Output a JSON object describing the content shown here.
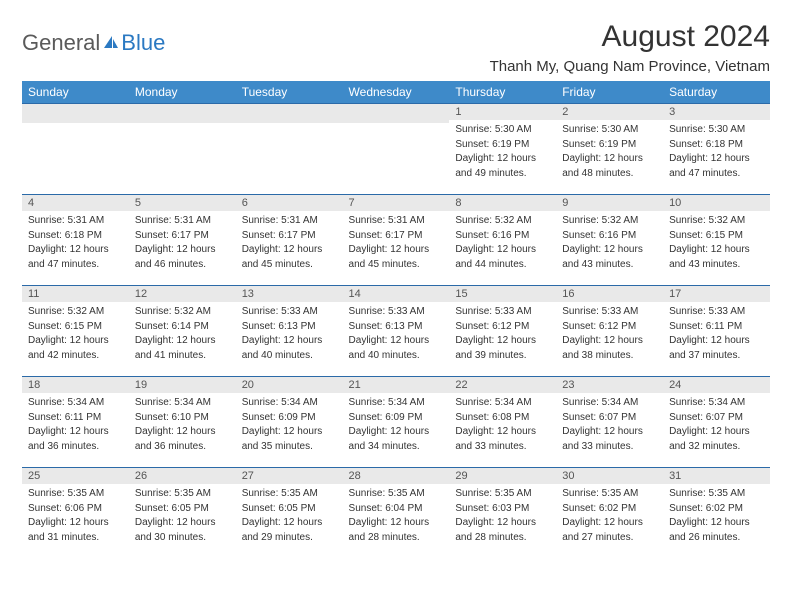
{
  "logo": {
    "text1": "General",
    "text2": "Blue"
  },
  "title": "August 2024",
  "location": "Thanh My, Quang Nam Province, Vietnam",
  "colors": {
    "header_bg": "#3e8ac9",
    "header_text": "#ffffff",
    "daynum_bg": "#e9e9e9",
    "border": "#2b6aa8",
    "logo_gray": "#5a5a5a",
    "logo_blue": "#2b79c2"
  },
  "weekdays": [
    "Sunday",
    "Monday",
    "Tuesday",
    "Wednesday",
    "Thursday",
    "Friday",
    "Saturday"
  ],
  "weeks": [
    [
      null,
      null,
      null,
      null,
      {
        "n": "1",
        "sr": "5:30 AM",
        "ss": "6:19 PM",
        "dl": "12 hours and 49 minutes."
      },
      {
        "n": "2",
        "sr": "5:30 AM",
        "ss": "6:19 PM",
        "dl": "12 hours and 48 minutes."
      },
      {
        "n": "3",
        "sr": "5:30 AM",
        "ss": "6:18 PM",
        "dl": "12 hours and 47 minutes."
      }
    ],
    [
      {
        "n": "4",
        "sr": "5:31 AM",
        "ss": "6:18 PM",
        "dl": "12 hours and 47 minutes."
      },
      {
        "n": "5",
        "sr": "5:31 AM",
        "ss": "6:17 PM",
        "dl": "12 hours and 46 minutes."
      },
      {
        "n": "6",
        "sr": "5:31 AM",
        "ss": "6:17 PM",
        "dl": "12 hours and 45 minutes."
      },
      {
        "n": "7",
        "sr": "5:31 AM",
        "ss": "6:17 PM",
        "dl": "12 hours and 45 minutes."
      },
      {
        "n": "8",
        "sr": "5:32 AM",
        "ss": "6:16 PM",
        "dl": "12 hours and 44 minutes."
      },
      {
        "n": "9",
        "sr": "5:32 AM",
        "ss": "6:16 PM",
        "dl": "12 hours and 43 minutes."
      },
      {
        "n": "10",
        "sr": "5:32 AM",
        "ss": "6:15 PM",
        "dl": "12 hours and 43 minutes."
      }
    ],
    [
      {
        "n": "11",
        "sr": "5:32 AM",
        "ss": "6:15 PM",
        "dl": "12 hours and 42 minutes."
      },
      {
        "n": "12",
        "sr": "5:32 AM",
        "ss": "6:14 PM",
        "dl": "12 hours and 41 minutes."
      },
      {
        "n": "13",
        "sr": "5:33 AM",
        "ss": "6:13 PM",
        "dl": "12 hours and 40 minutes."
      },
      {
        "n": "14",
        "sr": "5:33 AM",
        "ss": "6:13 PM",
        "dl": "12 hours and 40 minutes."
      },
      {
        "n": "15",
        "sr": "5:33 AM",
        "ss": "6:12 PM",
        "dl": "12 hours and 39 minutes."
      },
      {
        "n": "16",
        "sr": "5:33 AM",
        "ss": "6:12 PM",
        "dl": "12 hours and 38 minutes."
      },
      {
        "n": "17",
        "sr": "5:33 AM",
        "ss": "6:11 PM",
        "dl": "12 hours and 37 minutes."
      }
    ],
    [
      {
        "n": "18",
        "sr": "5:34 AM",
        "ss": "6:11 PM",
        "dl": "12 hours and 36 minutes."
      },
      {
        "n": "19",
        "sr": "5:34 AM",
        "ss": "6:10 PM",
        "dl": "12 hours and 36 minutes."
      },
      {
        "n": "20",
        "sr": "5:34 AM",
        "ss": "6:09 PM",
        "dl": "12 hours and 35 minutes."
      },
      {
        "n": "21",
        "sr": "5:34 AM",
        "ss": "6:09 PM",
        "dl": "12 hours and 34 minutes."
      },
      {
        "n": "22",
        "sr": "5:34 AM",
        "ss": "6:08 PM",
        "dl": "12 hours and 33 minutes."
      },
      {
        "n": "23",
        "sr": "5:34 AM",
        "ss": "6:07 PM",
        "dl": "12 hours and 33 minutes."
      },
      {
        "n": "24",
        "sr": "5:34 AM",
        "ss": "6:07 PM",
        "dl": "12 hours and 32 minutes."
      }
    ],
    [
      {
        "n": "25",
        "sr": "5:35 AM",
        "ss": "6:06 PM",
        "dl": "12 hours and 31 minutes."
      },
      {
        "n": "26",
        "sr": "5:35 AM",
        "ss": "6:05 PM",
        "dl": "12 hours and 30 minutes."
      },
      {
        "n": "27",
        "sr": "5:35 AM",
        "ss": "6:05 PM",
        "dl": "12 hours and 29 minutes."
      },
      {
        "n": "28",
        "sr": "5:35 AM",
        "ss": "6:04 PM",
        "dl": "12 hours and 28 minutes."
      },
      {
        "n": "29",
        "sr": "5:35 AM",
        "ss": "6:03 PM",
        "dl": "12 hours and 28 minutes."
      },
      {
        "n": "30",
        "sr": "5:35 AM",
        "ss": "6:02 PM",
        "dl": "12 hours and 27 minutes."
      },
      {
        "n": "31",
        "sr": "5:35 AM",
        "ss": "6:02 PM",
        "dl": "12 hours and 26 minutes."
      }
    ]
  ],
  "labels": {
    "sunrise": "Sunrise:",
    "sunset": "Sunset:",
    "daylight": "Daylight:"
  }
}
